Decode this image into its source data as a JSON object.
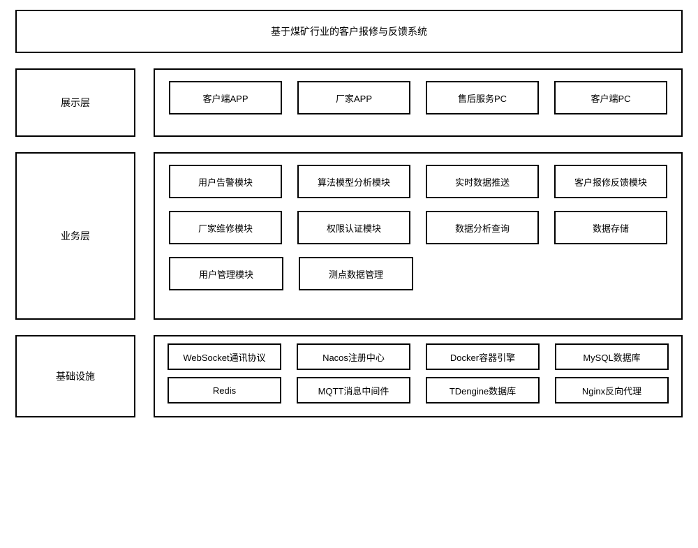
{
  "type": "architecture-diagram",
  "colors": {
    "background": "#ffffff",
    "border": "#000000",
    "text": "#000000"
  },
  "typography": {
    "title_fontsize": 14,
    "layer_label_fontsize": 14,
    "cell_fontsize": 13,
    "font_family": "Microsoft YaHei"
  },
  "border_width": 2,
  "title": "基于煤矿行业的客户报修与反馈系统",
  "layers": [
    {
      "key": "presentation",
      "label": "展示层",
      "rows": [
        [
          "客户端APP",
          "厂家APP",
          "售后服务PC",
          "客户端PC"
        ]
      ]
    },
    {
      "key": "business",
      "label": "业务层",
      "rows": [
        [
          "用户告警模块",
          "算法模型分析模块",
          "实时数据推送",
          "客户报修反馈模块"
        ],
        [
          "厂家维修模块",
          "权限认证模块",
          "数据分析查询",
          "数据存储"
        ],
        [
          "用户管理模块",
          "测点数据管理",
          "",
          ""
        ]
      ]
    },
    {
      "key": "infra",
      "label": "基础设施",
      "rows": [
        [
          "WebSocket通讯协议",
          "Nacos注册中心",
          "Docker容器引擎",
          "MySQL数据库"
        ],
        [
          "Redis",
          "MQTT消息中间件",
          "TDengine数据库",
          "Nginx反向代理"
        ]
      ]
    }
  ]
}
